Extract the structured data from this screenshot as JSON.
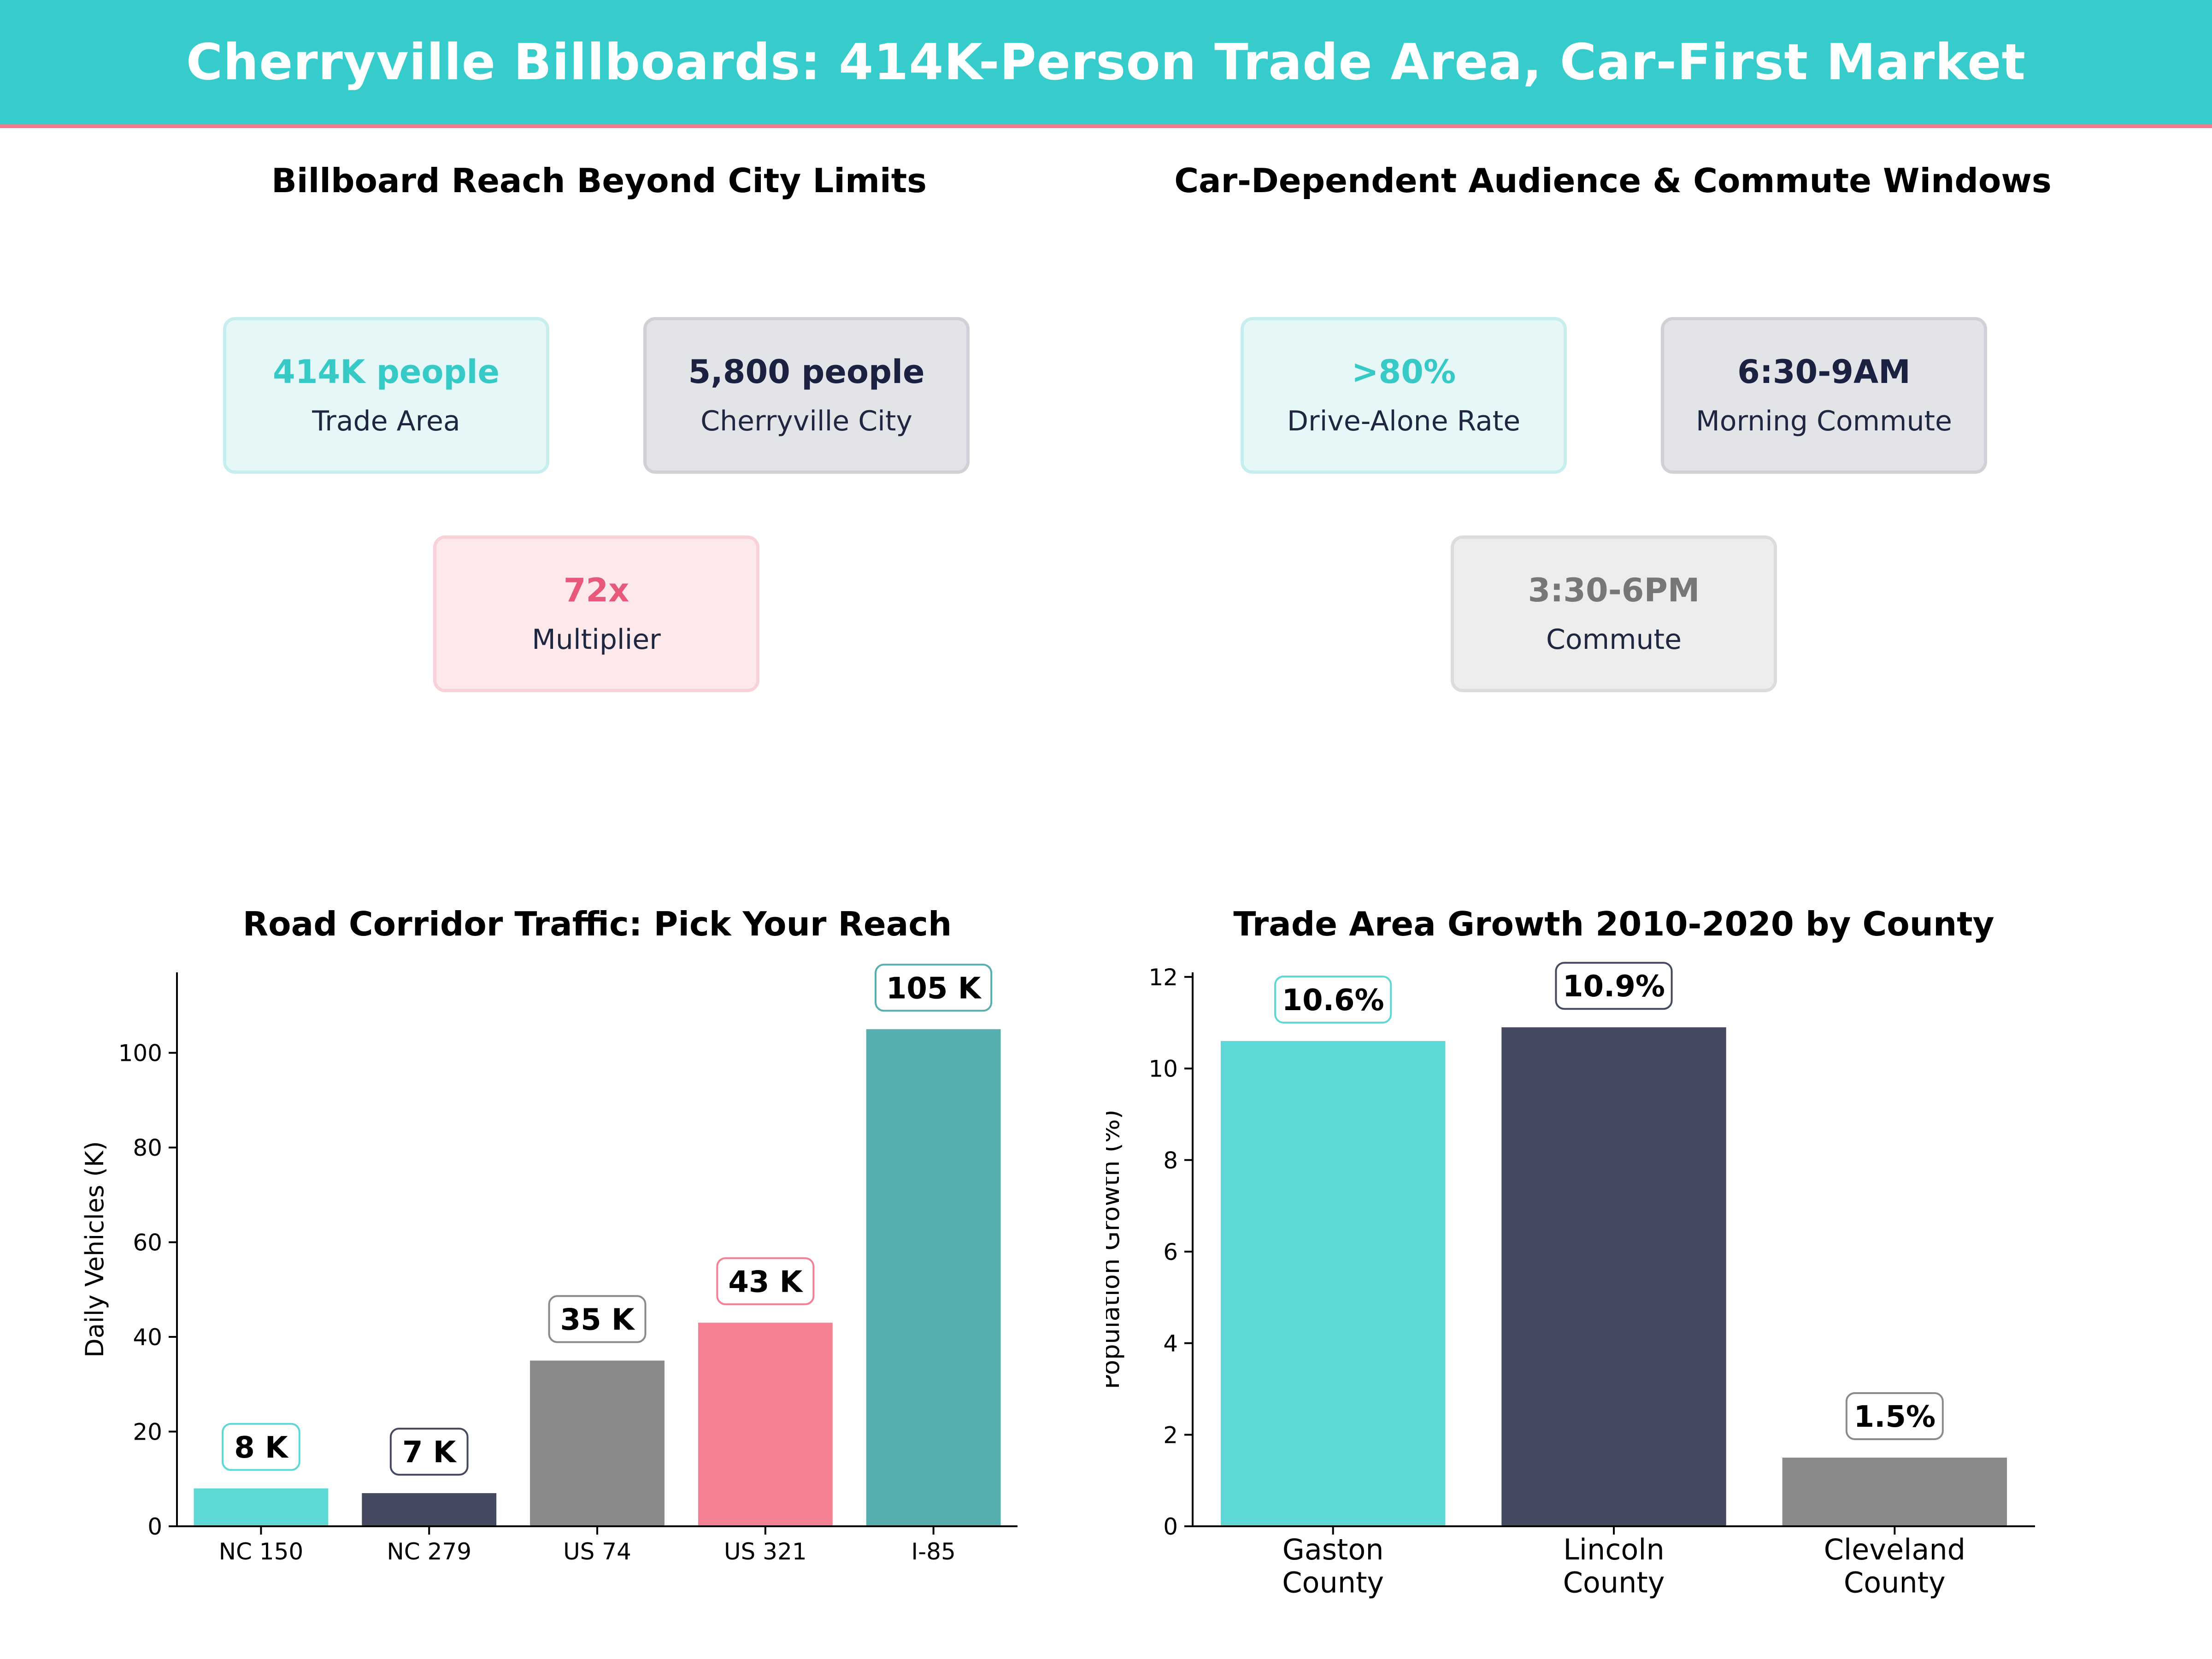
{
  "header": {
    "title": "Cherryville Billboards: 414K-Person Trade Area, Car-First Market"
  },
  "reach_panel": {
    "title": "Billboard Reach Beyond City Limits",
    "cards": [
      {
        "value": "414K people",
        "label": "Trade Area",
        "color": "#36c9c6"
      },
      {
        "value": "5,800 people",
        "label": "Cherryville City",
        "color": "#1b2140"
      },
      {
        "value": "72x",
        "label": "Multiplier",
        "color": "#e8587a"
      }
    ]
  },
  "audience_panel": {
    "title": "Car-Dependent Audience & Commute Windows",
    "cards": [
      {
        "value": ">80%",
        "label": "Drive-Alone Rate",
        "color": "#36c9c6"
      },
      {
        "value": "6:30-9AM",
        "label": "Morning Commute",
        "color": "#1b2140"
      },
      {
        "value": "3:30-6PM",
        "label": "Commute",
        "color": "#777777"
      }
    ]
  },
  "chart_data": [
    {
      "type": "bar",
      "title": "Road Corridor Traffic: Pick Your Reach",
      "xlabel": "",
      "ylabel": "Daily Vehicles (K)",
      "categories": [
        "NC 150",
        "NC 279",
        "US 74",
        "US 321",
        "I-85"
      ],
      "values": [
        8,
        7,
        35,
        43,
        105
      ],
      "data_labels": [
        "8 K",
        "7 K",
        "35 K",
        "43 K",
        "105 K"
      ],
      "colors": [
        "#5dd8d6",
        "#44495f",
        "#8a8a8a",
        "#f57f93",
        "#57aeae"
      ],
      "ylim": [
        0,
        117
      ],
      "yticks": [
        0,
        20,
        40,
        60,
        80,
        100
      ],
      "grid": false
    },
    {
      "type": "bar",
      "title": "Trade Area Growth 2010-2020 by County",
      "xlabel": "",
      "ylabel": "Population Growth (%)",
      "categories": [
        [
          "Gaston",
          "County"
        ],
        [
          "Lincoln",
          "County"
        ],
        [
          "Cleveland",
          "County"
        ]
      ],
      "values": [
        10.6,
        10.9,
        1.5
      ],
      "data_labels": [
        "10.6%",
        "10.9%",
        "1.5%"
      ],
      "colors": [
        "#5dd8d6",
        "#44495f",
        "#8a8a8a"
      ],
      "ylim": [
        0,
        12.1
      ],
      "yticks": [
        0,
        2,
        4,
        6,
        8,
        10,
        12
      ],
      "grid": false
    }
  ]
}
